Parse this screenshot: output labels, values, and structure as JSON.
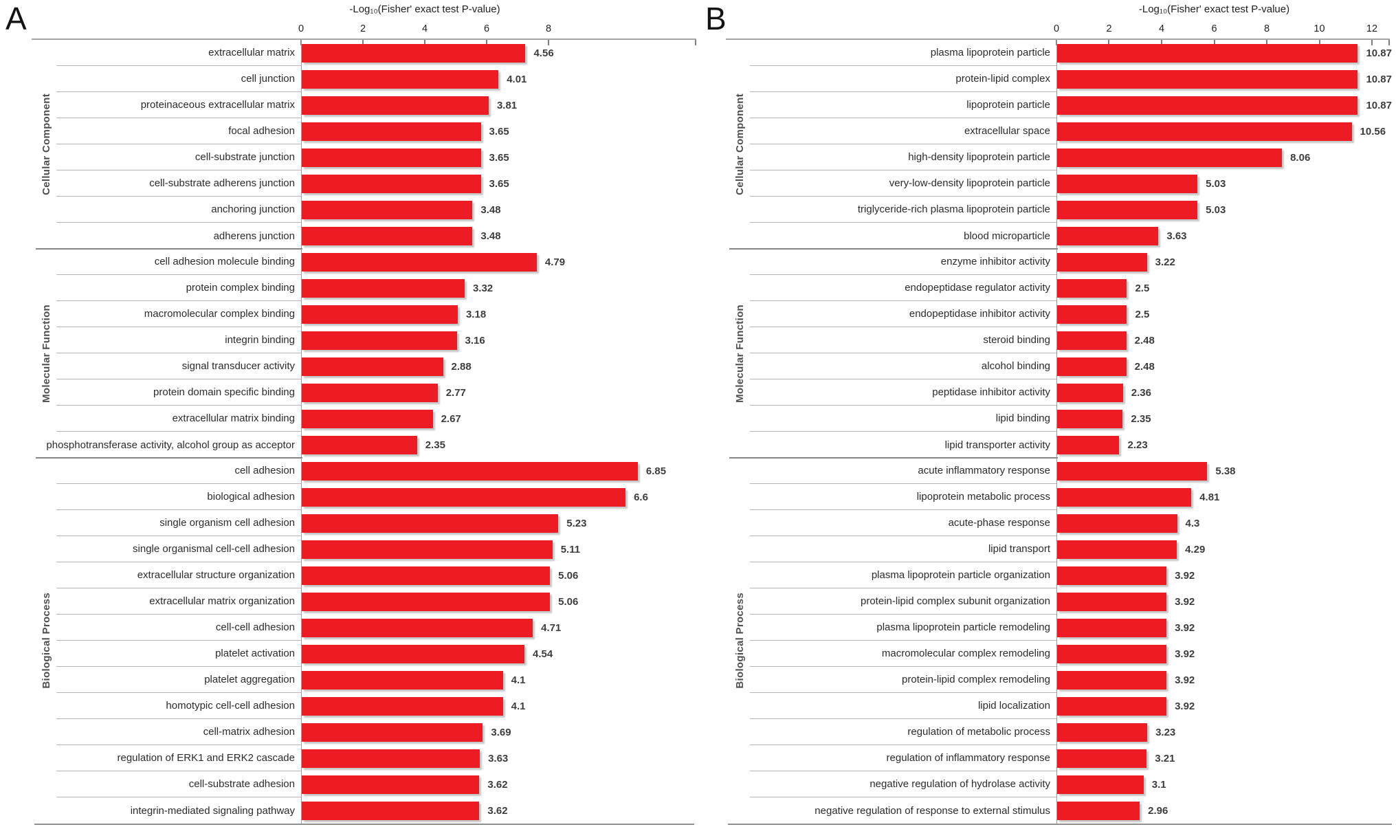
{
  "chart_data": [
    {
      "panel_label": "A",
      "type": "bar",
      "orientation": "horizontal",
      "axis_title": "-Log₁₀(Fisher' exact test P-value)",
      "xlabel": "-Log10(Fisher' exact test P-value)",
      "xlim": [
        0,
        8
      ],
      "xticks": [
        0,
        2,
        4,
        6,
        8
      ],
      "bar_color": "#ED1C24",
      "grid": "off",
      "legend": "none",
      "groups": [
        {
          "name": "Cellular Component",
          "items": [
            {
              "label": "extracellular matrix",
              "value": 4.56
            },
            {
              "label": "cell junction",
              "value": 4.01
            },
            {
              "label": "proteinaceous extracellular matrix",
              "value": 3.81
            },
            {
              "label": "focal adhesion",
              "value": 3.65
            },
            {
              "label": "cell-substrate junction",
              "value": 3.65
            },
            {
              "label": "cell-substrate adherens junction",
              "value": 3.65
            },
            {
              "label": "anchoring junction",
              "value": 3.48
            },
            {
              "label": "adherens junction",
              "value": 3.48
            }
          ]
        },
        {
          "name": "Molecular Function",
          "items": [
            {
              "label": "cell adhesion molecule binding",
              "value": 4.79
            },
            {
              "label": "protein complex binding",
              "value": 3.32
            },
            {
              "label": "macromolecular complex binding",
              "value": 3.18
            },
            {
              "label": "integrin binding",
              "value": 3.16
            },
            {
              "label": "signal transducer activity",
              "value": 2.88
            },
            {
              "label": "protein domain specific binding",
              "value": 2.77
            },
            {
              "label": "extracellular matrix binding",
              "value": 2.67
            },
            {
              "label": "phosphotransferase activity, alcohol group as acceptor",
              "value": 2.35
            }
          ]
        },
        {
          "name": "Biological Process",
          "items": [
            {
              "label": "cell adhesion",
              "value": 6.85
            },
            {
              "label": "biological adhesion",
              "value": 6.6
            },
            {
              "label": "single organism cell adhesion",
              "value": 5.23
            },
            {
              "label": "single organismal cell-cell adhesion",
              "value": 5.11
            },
            {
              "label": "extracellular structure organization",
              "value": 5.06
            },
            {
              "label": "extracellular matrix organization",
              "value": 5.06
            },
            {
              "label": "cell-cell adhesion",
              "value": 4.71
            },
            {
              "label": "platelet activation",
              "value": 4.54
            },
            {
              "label": "platelet aggregation",
              "value": 4.1
            },
            {
              "label": "homotypic cell-cell adhesion",
              "value": 4.1
            },
            {
              "label": "cell-matrix adhesion",
              "value": 3.69
            },
            {
              "label": "regulation of ERK1 and ERK2 cascade",
              "value": 3.63
            },
            {
              "label": "cell-substrate adhesion",
              "value": 3.62
            },
            {
              "label": "integrin-mediated signaling pathway",
              "value": 3.62
            }
          ]
        }
      ]
    },
    {
      "panel_label": "B",
      "type": "bar",
      "orientation": "horizontal",
      "axis_title": "-Log₁₀(Fisher' exact test P-value)",
      "xlabel": "-Log10(Fisher' exact test P-value)",
      "xlim": [
        0,
        12
      ],
      "xticks": [
        0,
        2,
        4,
        6,
        8,
        10,
        12
      ],
      "bar_color": "#ED1C24",
      "grid": "off",
      "legend": "none",
      "groups": [
        {
          "name": "Cellular Component",
          "items": [
            {
              "label": "plasma lipoprotein particle",
              "value": 10.87
            },
            {
              "label": "protein-lipid complex",
              "value": 10.87
            },
            {
              "label": "lipoprotein particle",
              "value": 10.87
            },
            {
              "label": "extracellular space",
              "value": 10.56
            },
            {
              "label": "high-density lipoprotein particle",
              "value": 8.06
            },
            {
              "label": "very-low-density lipoprotein particle",
              "value": 5.03
            },
            {
              "label": "triglyceride-rich plasma lipoprotein particle",
              "value": 5.03
            },
            {
              "label": "blood microparticle",
              "value": 3.63
            }
          ]
        },
        {
          "name": "Molecular Function",
          "items": [
            {
              "label": "enzyme inhibitor activity",
              "value": 3.22
            },
            {
              "label": "endopeptidase regulator activity",
              "value": 2.5
            },
            {
              "label": "endopeptidase inhibitor activity",
              "value": 2.5
            },
            {
              "label": "steroid binding",
              "value": 2.48
            },
            {
              "label": "alcohol binding",
              "value": 2.48
            },
            {
              "label": "peptidase inhibitor activity",
              "value": 2.36
            },
            {
              "label": "lipid binding",
              "value": 2.35
            },
            {
              "label": "lipid transporter activity",
              "value": 2.23
            }
          ]
        },
        {
          "name": "Biological Process",
          "items": [
            {
              "label": "acute inflammatory response",
              "value": 5.38
            },
            {
              "label": "lipoprotein metabolic process",
              "value": 4.81
            },
            {
              "label": "acute-phase response",
              "value": 4.3
            },
            {
              "label": "lipid transport",
              "value": 4.29
            },
            {
              "label": "plasma lipoprotein particle organization",
              "value": 3.92
            },
            {
              "label": "protein-lipid complex subunit organization",
              "value": 3.92
            },
            {
              "label": "plasma lipoprotein particle remodeling",
              "value": 3.92
            },
            {
              "label": "macromolecular complex remodeling",
              "value": 3.92
            },
            {
              "label": "protein-lipid complex remodeling",
              "value": 3.92
            },
            {
              "label": "lipid localization",
              "value": 3.92
            },
            {
              "label": "regulation of metabolic process",
              "value": 3.23
            },
            {
              "label": "regulation of inflammatory response",
              "value": 3.21
            },
            {
              "label": "negative regulation of hydrolase activity",
              "value": 3.1
            },
            {
              "label": "negative regulation of response to external stimulus",
              "value": 2.96
            }
          ]
        }
      ]
    }
  ]
}
